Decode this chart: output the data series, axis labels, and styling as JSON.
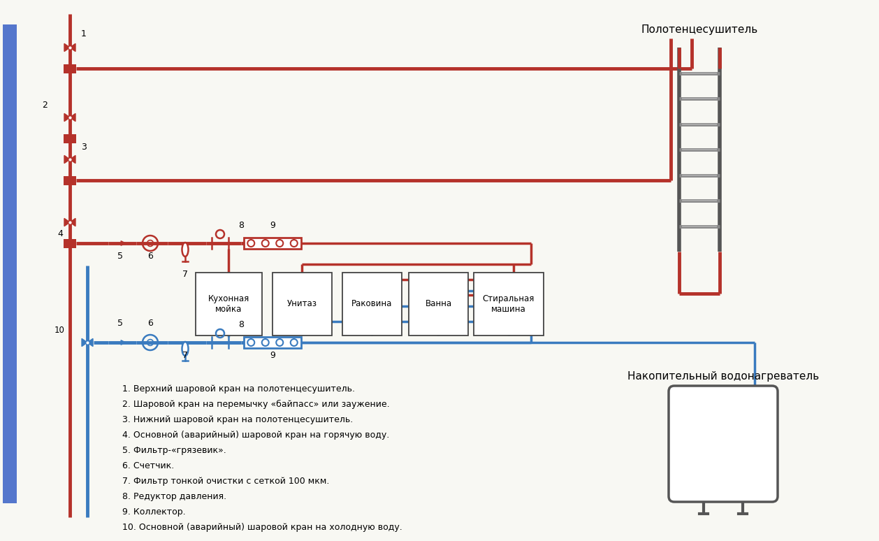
{
  "bg_color": "#f8f8f3",
  "hot_color": "#b5322a",
  "cold_color": "#3a7bbf",
  "pipe_lw": 3.5,
  "pipe_lw2": 2.5,
  "dark_gray": "#555555",
  "mid_gray": "#888888",
  "legend_items": [
    "1. Верхний шаровой кран на полотенцесушитель.",
    "2. Шаровой кран на перемычку «байпасс» или заужение.",
    "3. Нижний шаровой кран на полотенцесушитель.",
    "4. Основной (аварийный) шаровой кран на горячую воду.",
    "5. Фильтр-«грязевик».",
    "6. Счетчик.",
    "7. Фильтр тонкой очистки с сеткой 100 мкм.",
    "8. Редуктор давления.",
    "9. Коллектор.",
    "10. Основной (аварийный) шаровой кран на холодную воду."
  ],
  "appliance_labels": [
    "Кухонная\nмойка",
    "Унитаз",
    "Раковина",
    "Ванна",
    "Стиральная\nмашина"
  ],
  "title_towel": "Полотенцесушитель",
  "title_heater": "Накопительный водонагреватель"
}
